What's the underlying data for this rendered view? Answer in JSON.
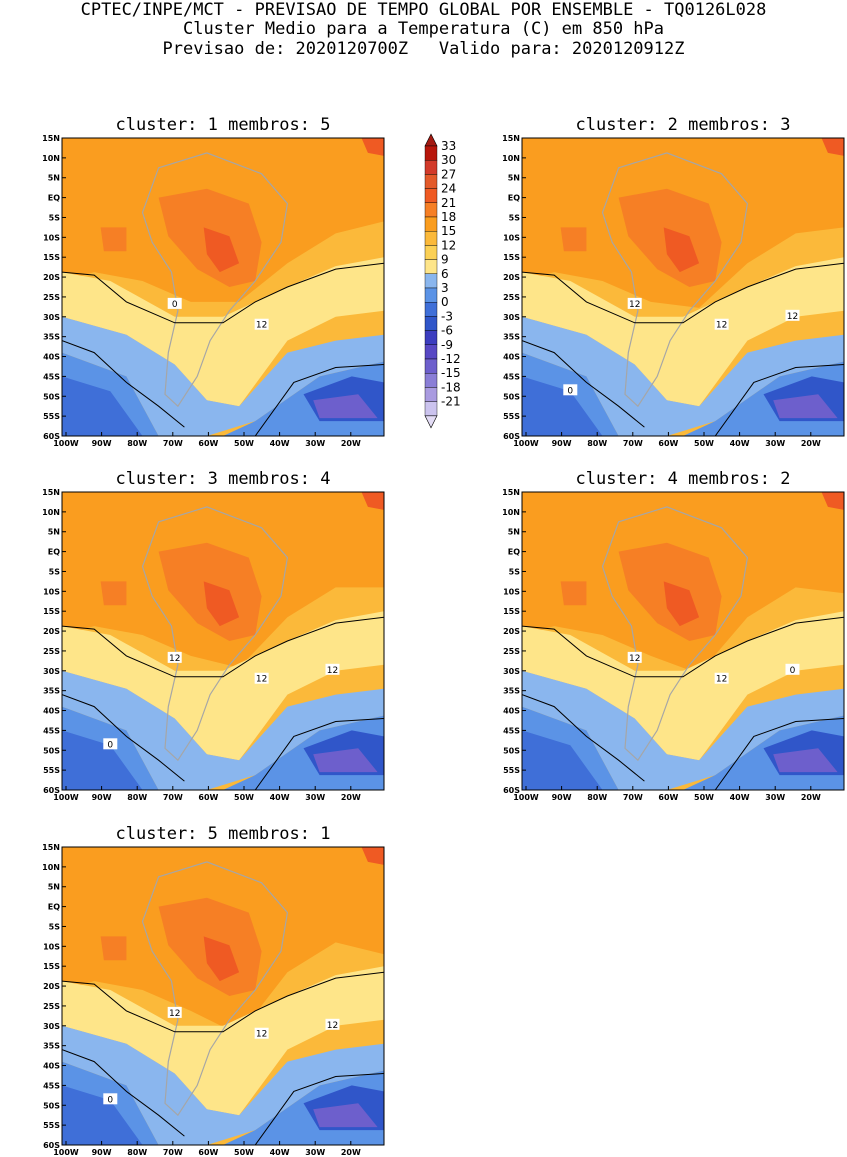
{
  "header": {
    "line1": "CPTEC/INPE/MCT - PREVISAO DE TEMPO GLOBAL POR ENSEMBLE - TQ0126L028",
    "line2": "Cluster Medio para a Temperatura (C) em 850 hPa",
    "line3": "Previsao de: 2020120700Z   Valido para: 2020120912Z"
  },
  "axes": {
    "lat_labels": [
      "15N",
      "10N",
      "5N",
      "EQ",
      "5S",
      "10S",
      "15S",
      "20S",
      "25S",
      "30S",
      "35S",
      "40S",
      "45S",
      "50S",
      "55S",
      "60S"
    ],
    "lon_labels": [
      "100W",
      "90W",
      "80W",
      "70W",
      "60W",
      "50W",
      "40W",
      "30W",
      "20W"
    ]
  },
  "colorbar": {
    "levels": [
      "33",
      "30",
      "27",
      "24",
      "21",
      "18",
      "15",
      "12",
      "9",
      "6",
      "3",
      "0",
      "-3",
      "-6",
      "-9",
      "-12",
      "-15",
      "-18",
      "-21"
    ],
    "colors": [
      "#b7160b",
      "#d23a2a",
      "#e35a2a",
      "#ef5a23",
      "#f67f25",
      "#fa9d1f",
      "#fbb93a",
      "#fbd055",
      "#fee589",
      "#8ab6ee",
      "#5b93e6",
      "#3f6fd8",
      "#3056c9",
      "#3c3dbf",
      "#5848c4",
      "#6d5fcc",
      "#8a7ed6",
      "#a99be0",
      "#cbc3ee"
    ],
    "arrow_top": "#a31a12",
    "arrow_bottom": "#e3dcf5"
  },
  "panels": [
    {
      "cluster": "1",
      "membros": "5",
      "title": "cluster: 1   membros: 5",
      "contour_labels": [
        "12",
        "0"
      ]
    },
    {
      "cluster": "2",
      "membros": "3",
      "title": "cluster: 2   membros: 3",
      "contour_labels": [
        "12",
        "12",
        "12",
        "0"
      ]
    },
    {
      "cluster": "3",
      "membros": "4",
      "title": "cluster: 3   membros: 4",
      "contour_labels": [
        "12",
        "12",
        "12",
        "0"
      ]
    },
    {
      "cluster": "4",
      "membros": "2",
      "title": "cluster: 4   membros: 2",
      "contour_labels": [
        "12",
        "12",
        "0"
      ]
    },
    {
      "cluster": "5",
      "membros": "1",
      "title": "cluster: 5   membros: 1",
      "contour_labels": [
        "12",
        "12",
        "12",
        "0"
      ]
    }
  ]
}
